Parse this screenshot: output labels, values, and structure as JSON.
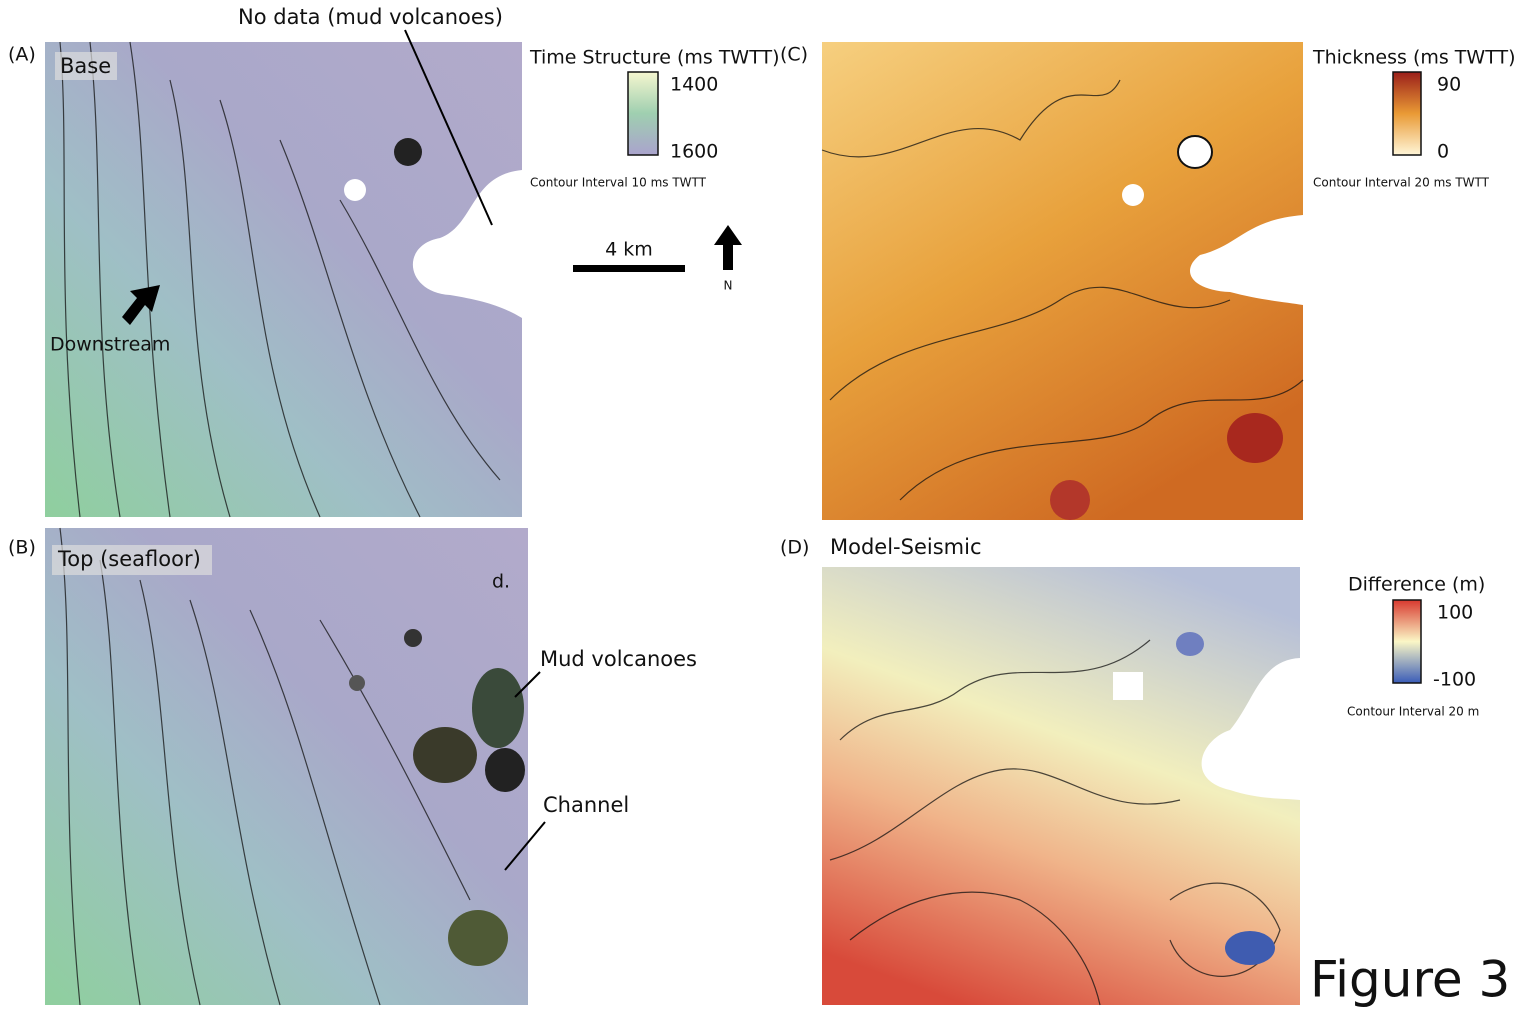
{
  "panels": [
    {
      "label": "(A)",
      "title": "Base"
    },
    {
      "label": "(B)",
      "title": "Top (seafloor)"
    },
    {
      "label": "(C)"
    },
    {
      "label": "(D)",
      "title": "Model-Seismic"
    }
  ],
  "colorbars": [
    {
      "title": "Time Structure (ms TWTT)",
      "ticks": [
        1400,
        1600
      ],
      "note": "Contour Interval 10 ms TWTT"
    },
    {
      "title": "Thickness (ms TWTT)",
      "ticks": [
        90,
        0
      ],
      "note": "Contour Interval 20 ms TWTT"
    },
    {
      "title": "Difference (m)",
      "ticks": [
        100,
        -100
      ],
      "note": "Contour Interval 20 m"
    }
  ],
  "scale_bar": "4 km",
  "north": "N",
  "annotations": [
    "No data (mud volcanoes)",
    "Downstream",
    "Mud volcanoes",
    "Channel",
    "d."
  ],
  "figure_label": "Figure 3"
}
